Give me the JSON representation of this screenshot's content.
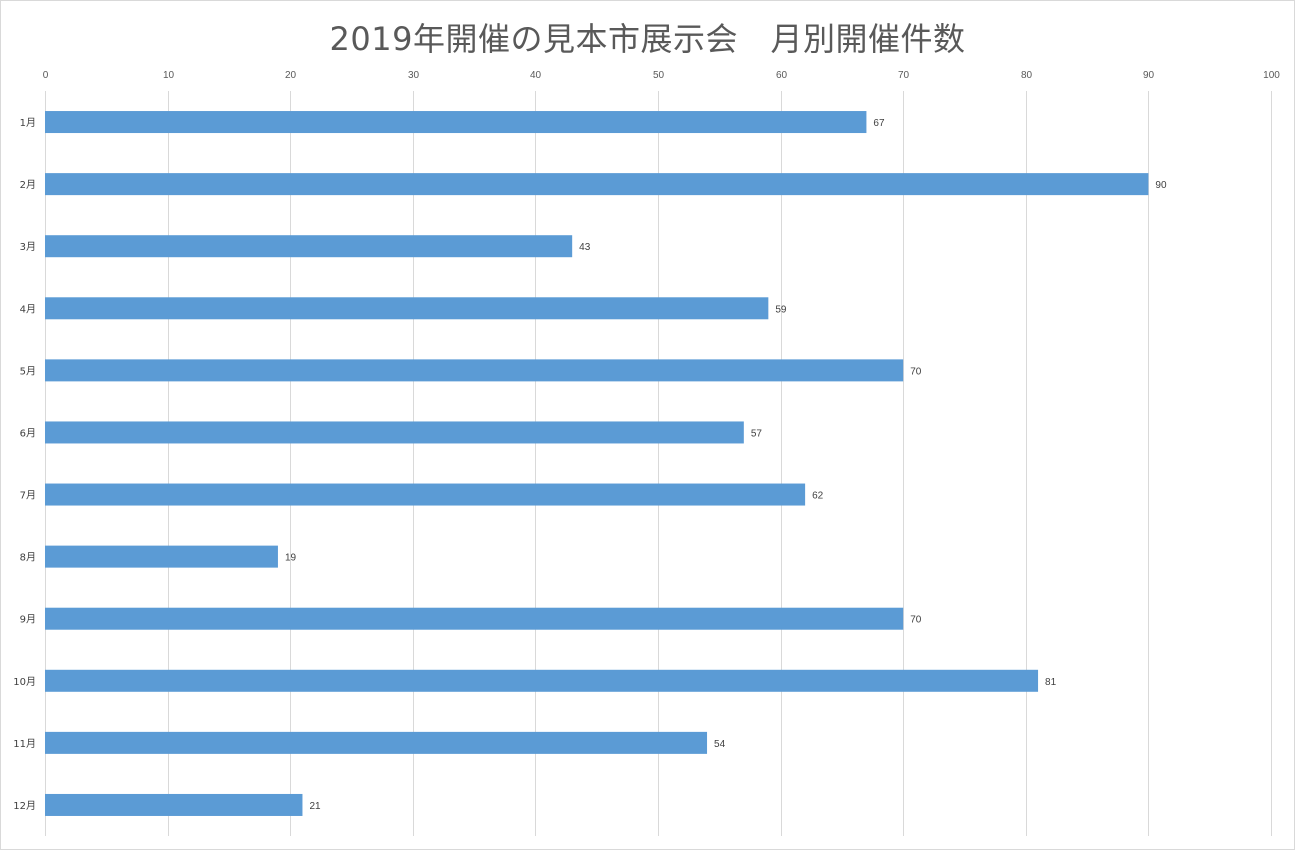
{
  "chart_data": {
    "type": "bar",
    "orientation": "horizontal",
    "title": "2019年開催の見本市展示会　月別開催件数",
    "categories": [
      "1月",
      "2月",
      "3月",
      "4月",
      "5月",
      "6月",
      "7月",
      "8月",
      "9月",
      "10月",
      "11月",
      "12月"
    ],
    "values": [
      67,
      90,
      43,
      59,
      70,
      57,
      62,
      19,
      70,
      81,
      54,
      21
    ],
    "xlim": [
      0,
      100
    ],
    "x_ticks": [
      0,
      10,
      20,
      30,
      40,
      50,
      60,
      70,
      80,
      90,
      100
    ],
    "x_axis_position": "top",
    "grid": true,
    "data_labels": true,
    "legend": "none",
    "bar_color": "#5b9bd5",
    "grid_color": "#d9d9d9"
  }
}
